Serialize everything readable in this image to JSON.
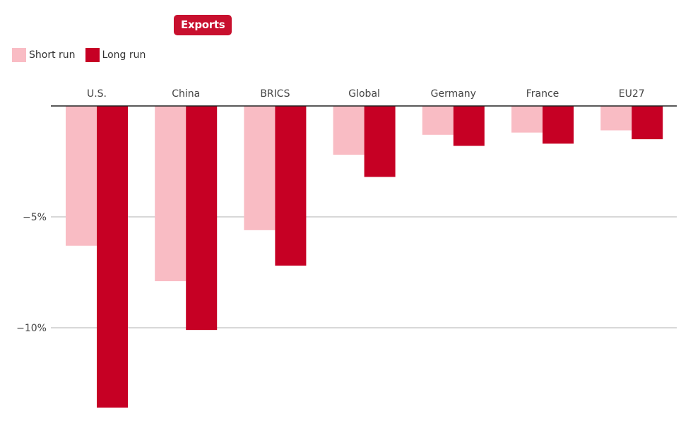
{
  "tab": {
    "label": "Exports"
  },
  "colors": {
    "short_run": "#f9bcc4",
    "long_run": "#c60024",
    "badge": "#c8102e",
    "gridline": "#b0b0b0",
    "axis": "#222222"
  },
  "chart_data": {
    "type": "bar",
    "categories": [
      "U.S.",
      "China",
      "BRICS",
      "Global",
      "Germany",
      "France",
      "EU27"
    ],
    "series": [
      {
        "name": "Short run",
        "values": [
          -6.3,
          -7.9,
          -5.6,
          -2.2,
          -1.3,
          -1.2,
          -1.1
        ]
      },
      {
        "name": "Long run",
        "values": [
          -13.6,
          -10.1,
          -7.2,
          -3.2,
          -1.8,
          -1.7,
          -1.5
        ]
      }
    ],
    "y_ticks": [
      {
        "value": -5,
        "label": "−5%"
      },
      {
        "value": -10,
        "label": "−10%"
      }
    ],
    "ylim": [
      -14,
      0
    ],
    "legend_position": "top-left",
    "category_labels_position": "top",
    "grid": true
  }
}
